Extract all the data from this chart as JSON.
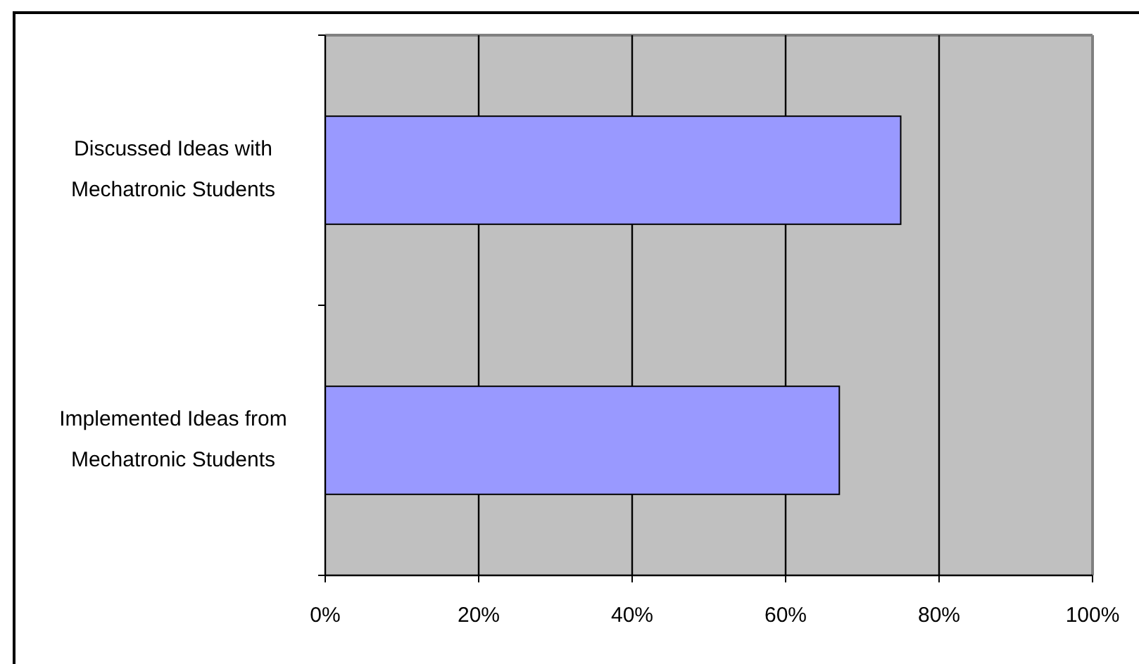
{
  "chart_data": {
    "type": "bar",
    "orientation": "horizontal",
    "categories": [
      "Discussed Ideas with Mechatronic Students",
      "Implemented Ideas from Mechatronic Students"
    ],
    "values": [
      75,
      67
    ],
    "color": "#9999ff",
    "xlim": [
      0,
      100
    ],
    "xticks": [
      {
        "value": 0,
        "label": "0%"
      },
      {
        "value": 20,
        "label": "20%"
      },
      {
        "value": 40,
        "label": "40%"
      },
      {
        "value": 60,
        "label": "60%"
      },
      {
        "value": 80,
        "label": "80%"
      },
      {
        "value": 100,
        "label": "100%"
      }
    ],
    "grid": "x"
  }
}
